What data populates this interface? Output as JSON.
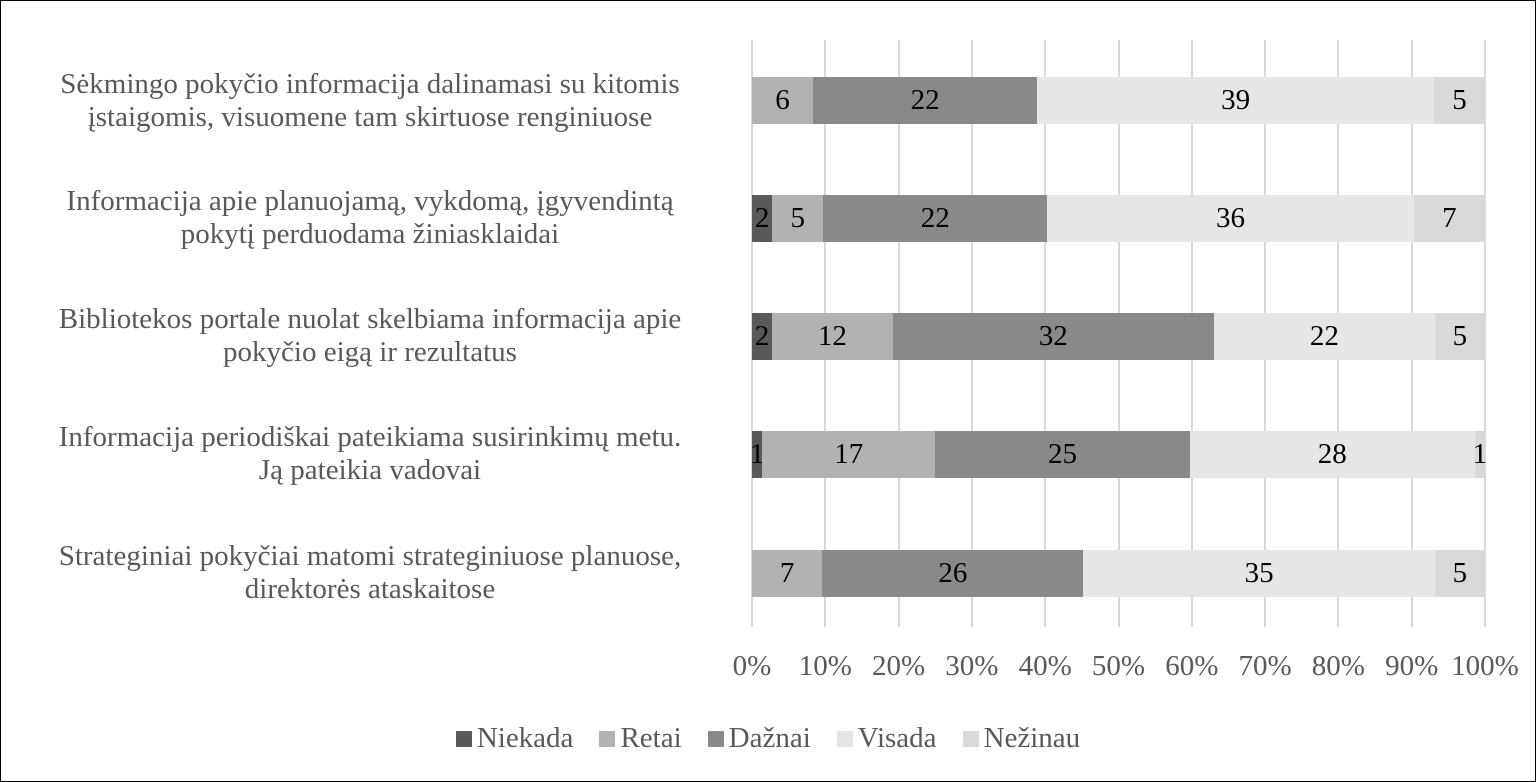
{
  "chart_data": {
    "type": "bar",
    "orientation": "horizontal",
    "stacked": "percent",
    "title": "",
    "xlabel": "",
    "ylabel": "",
    "xlim": [
      0,
      100
    ],
    "grid": true,
    "legend_position": "bottom",
    "x_ticks": [
      "0%",
      "10%",
      "20%",
      "30%",
      "40%",
      "50%",
      "60%",
      "70%",
      "80%",
      "90%",
      "100%"
    ],
    "categories": [
      "Sėkmingo pokyčio informacija dalinamasi su kitomis įstaigomis, visuomene tam skirtuose renginiuose",
      "Informacija apie planuojamą, vykdomą, įgyvendintą pokytį perduodama žiniasklaidai",
      "Bibliotekos portale nuolat skelbiama informacija apie pokyčio eigą ir rezultatus",
      "Informacija periodiškai pateikiama susirinkimų metu. Ją pateikia vadovai",
      "Strateginiai pokyčiai matomi strateginiuose planuose, direktorės ataskaitose"
    ],
    "series": [
      {
        "name": "Niekada",
        "color": "#595959",
        "values": [
          0,
          2,
          2,
          1,
          0
        ]
      },
      {
        "name": "Retai",
        "color": "#b2b2b2",
        "values": [
          6,
          5,
          12,
          17,
          7
        ]
      },
      {
        "name": "Dažnai",
        "color": "#898989",
        "values": [
          22,
          22,
          32,
          25,
          26
        ]
      },
      {
        "name": "Visada",
        "color": "#e6e6e6",
        "values": [
          39,
          36,
          22,
          28,
          35
        ]
      },
      {
        "name": "Nežinau",
        "color": "#d9d9d9",
        "values": [
          5,
          7,
          5,
          1,
          5
        ]
      }
    ]
  },
  "rows": [
    {
      "line1": "Sėkmingo pokyčio informacija dalinamasi su kitomis",
      "line2": "įstaigomis, visuomene tam skirtuose renginiuose"
    },
    {
      "line1": "Informacija apie planuojamą, vykdomą, įgyvendintą",
      "line2": "pokytį perduodama žiniasklaidai"
    },
    {
      "line1": "Bibliotekos portale nuolat skelbiama informacija apie",
      "line2": "pokyčio eigą ir rezultatus"
    },
    {
      "line1": "Informacija periodiškai pateikiama susirinkimų metu.",
      "line2": "Ją pateikia vadovai"
    },
    {
      "line1": "Strateginiai pokyčiai matomi strateginiuose planuose,",
      "line2": "direktorės ataskaitose"
    }
  ],
  "legend": [
    "Niekada",
    "Retai",
    "Dažnai",
    "Visada",
    "Nežinau"
  ]
}
